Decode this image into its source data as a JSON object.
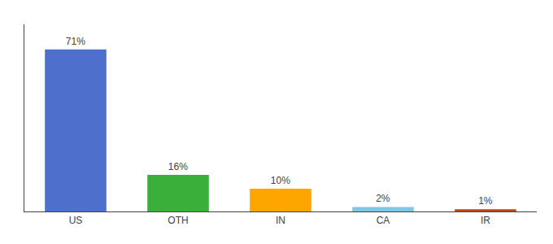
{
  "chart_data": {
    "type": "bar",
    "categories": [
      "US",
      "OTH",
      "IN",
      "CA",
      "IR"
    ],
    "values": [
      71,
      16,
      10,
      2,
      1
    ],
    "value_labels": [
      "71%",
      "16%",
      "10%",
      "2%",
      "1%"
    ],
    "colors": [
      "#4f6fcc",
      "#3aaf3a",
      "#ffa500",
      "#7ec8e3",
      "#b84a1a"
    ],
    "ylim": [
      0,
      82
    ],
    "data_labels": true,
    "tick_labels": "x",
    "grid": false
  }
}
